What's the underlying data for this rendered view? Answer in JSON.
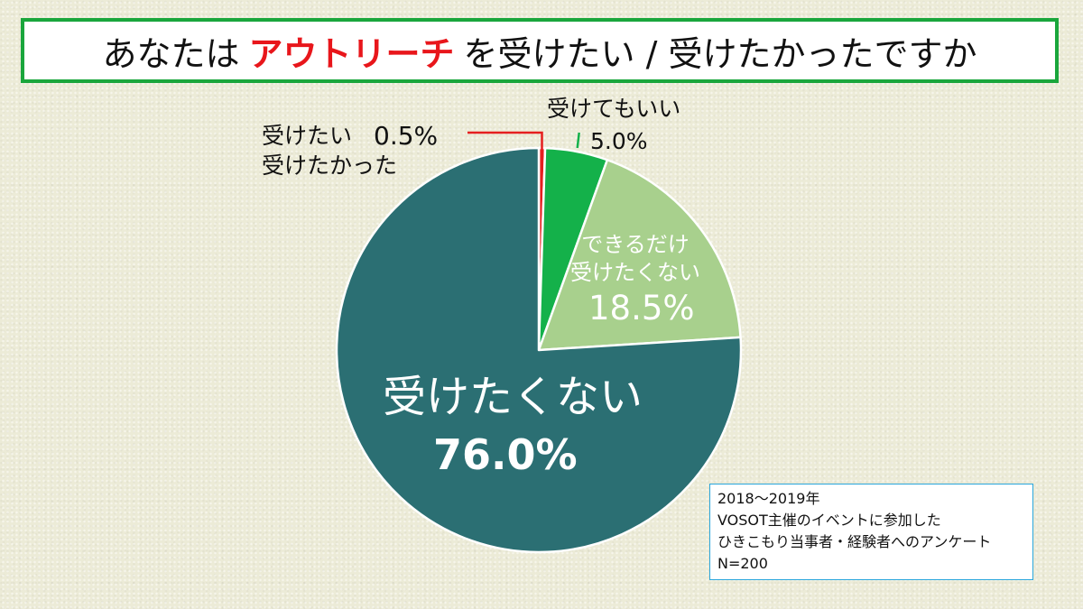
{
  "title": {
    "before": "あなたは",
    "highlight": "アウトリーチ",
    "after": "を受けたい / 受けたかったですか"
  },
  "chart_data": {
    "type": "pie",
    "start_angle_deg": 0,
    "direction": "clockwise",
    "slices": [
      {
        "label_lines": [
          "受けたい",
          "受けたかった"
        ],
        "value": 0.5,
        "value_label": "0.5%",
        "color": "#e51f1f"
      },
      {
        "label_lines": [
          "受けてもいい"
        ],
        "value": 5.0,
        "value_label": "5.0%",
        "color": "#14b14a"
      },
      {
        "label_lines": [
          "できるだけ",
          "受けたくない"
        ],
        "value": 18.5,
        "value_label": "18.5%",
        "color": "#a8d08d"
      },
      {
        "label_lines": [
          "受けたくない"
        ],
        "value": 76.0,
        "value_label": "76.0%",
        "color": "#2b6f73"
      }
    ]
  },
  "note": {
    "line1": "2018～2019年",
    "line2": "VOSOT主催のイベントに参加した",
    "line3": "ひきこもり当事者・経験者へのアンケート",
    "line4": " N=200"
  }
}
